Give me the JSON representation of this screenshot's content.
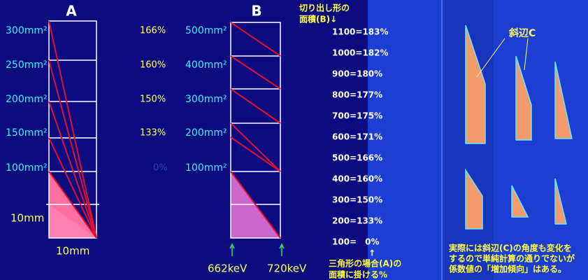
{
  "panel_a": {
    "title": "A",
    "area_labels": [
      "300mm²",
      "250mm²",
      "200mm²",
      "150mm²",
      "100mm²"
    ],
    "side_label": "10mm",
    "bottom_label": "10mm"
  },
  "percent_column": [
    "166%",
    "160%",
    "150%",
    "133%",
    "0%"
  ],
  "panel_b": {
    "title": "B",
    "area_labels": [
      "500mm²",
      "400mm²",
      "300mm²",
      "200mm²",
      "100mm²"
    ],
    "energy_labels": [
      "662keV",
      "720keV"
    ]
  },
  "area_note": {
    "lines": [
      "切り出し形の",
      "面積(B)↓"
    ]
  },
  "ratio_list": [
    "1100=183%",
    "1000=182%",
    "900=180%",
    "800=177%",
    "700=175%",
    "600=171%",
    "500=166%",
    "400=160%",
    "300=150%",
    "200=133%",
    "100=　0%"
  ],
  "triangle_note": {
    "arrow": "↑",
    "lines": [
      "三角形の場合(A)の",
      "面積に掛ける%"
    ]
  },
  "hypotenuse_label": "斜辺C",
  "footnote": {
    "lines": [
      "実際には斜辺(C)の角度も変化を",
      "するので単純計算の通りでないが",
      "係数値の「増加傾向」はある。"
    ]
  }
}
